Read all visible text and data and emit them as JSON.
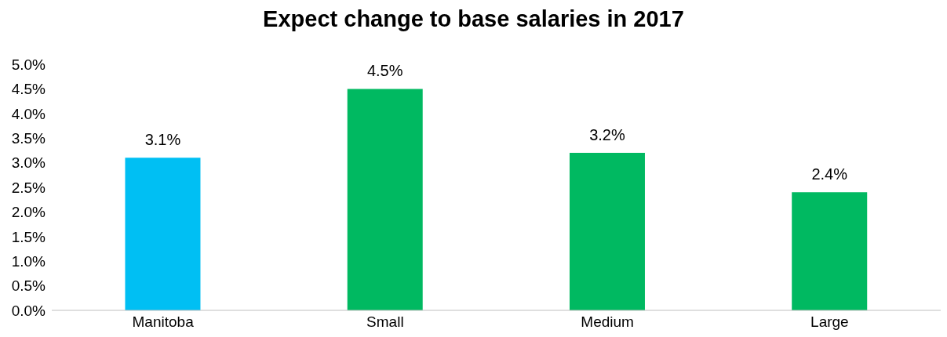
{
  "chart_data": {
    "type": "bar",
    "title": "Expect change to base salaries in 2017",
    "categories": [
      "Manitoba",
      "Small",
      "Medium",
      "Large"
    ],
    "values": [
      3.1,
      4.5,
      3.2,
      2.4
    ],
    "colors": [
      "#00bff3",
      "#00b961",
      "#00b961",
      "#00b961"
    ],
    "value_labels": [
      "3.1%",
      "4.5%",
      "3.2%",
      "2.4%"
    ],
    "ylim": [
      0,
      5
    ],
    "yticks": [
      {
        "value": 0,
        "label": "0.0%"
      },
      {
        "value": 0.5,
        "label": "0.5%"
      },
      {
        "value": 1,
        "label": "1.0%"
      },
      {
        "value": 1.5,
        "label": "1.5%"
      },
      {
        "value": 2,
        "label": "2.0%"
      },
      {
        "value": 2.5,
        "label": "2.5%"
      },
      {
        "value": 3,
        "label": "3.0%"
      },
      {
        "value": 3.5,
        "label": "3.5%"
      },
      {
        "value": 4,
        "label": "4.0%"
      },
      {
        "value": 4.5,
        "label": "4.5%"
      },
      {
        "value": 5,
        "label": "5.0%"
      }
    ],
    "grid": false,
    "legend": false
  }
}
